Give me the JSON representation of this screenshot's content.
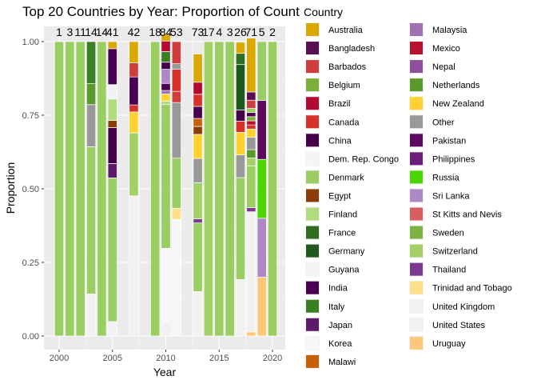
{
  "chart_data": {
    "type": "bar",
    "stacked": true,
    "title": "Top 20 Countries by Year: Proportion of Count",
    "xlabel": "Year",
    "ylabel": "Proportion",
    "xlim": [
      1998,
      2021
    ],
    "ylim": [
      0,
      1
    ],
    "xticks": [
      2000,
      2005,
      2010,
      2015,
      2020
    ],
    "yticks": [
      "0.00",
      "0.25",
      "0.50",
      "0.75",
      "1.00"
    ],
    "legend_title": "Country",
    "legend_position": "right",
    "legend": [
      {
        "name": "Australia",
        "color": "#DAA800"
      },
      {
        "name": "Bangladesh",
        "color": "#5A0F55"
      },
      {
        "name": "Barbados",
        "color": "#CF3D3D"
      },
      {
        "name": "Belgium",
        "color": "#7AAF3A"
      },
      {
        "name": "Brazil",
        "color": "#B20A30"
      },
      {
        "name": "Canada",
        "color": "#D6312B"
      },
      {
        "name": "China",
        "color": "#45004A"
      },
      {
        "name": "Dem. Rep. Congo",
        "color": "#F5F5F5"
      },
      {
        "name": "Denmark",
        "color": "#9ACD62"
      },
      {
        "name": "Egypt",
        "color": "#8C3C06"
      },
      {
        "name": "Finland",
        "color": "#B0DD7E"
      },
      {
        "name": "France",
        "color": "#2F6E20"
      },
      {
        "name": "Germany",
        "color": "#1E5A1E"
      },
      {
        "name": "Guyana",
        "color": "#F4F4F4"
      },
      {
        "name": "India",
        "color": "#4A0050"
      },
      {
        "name": "Italy",
        "color": "#3A7F22"
      },
      {
        "name": "Japan",
        "color": "#5E1A6A"
      },
      {
        "name": "Korea",
        "color": "#F7F7F7"
      },
      {
        "name": "Malawi",
        "color": "#C8600A"
      },
      {
        "name": "Malaysia",
        "color": "#A070B0"
      },
      {
        "name": "Mexico",
        "color": "#B5122E"
      },
      {
        "name": "Nepal",
        "color": "#8E509C"
      },
      {
        "name": "Netherlands",
        "color": "#5A9A2A"
      },
      {
        "name": "New Zealand",
        "color": "#FFD230"
      },
      {
        "name": "Other",
        "color": "#999999"
      },
      {
        "name": "Pakistan",
        "color": "#5C0A5E"
      },
      {
        "name": "Philippines",
        "color": "#6A1E78"
      },
      {
        "name": "Russia",
        "color": "#4CD600"
      },
      {
        "name": "Sri Lanka",
        "color": "#AE88C4"
      },
      {
        "name": "St Kitts and Nevis",
        "color": "#D85F5F"
      },
      {
        "name": "Sweden",
        "color": "#7CB342"
      },
      {
        "name": "Switzerland",
        "color": "#A2CF66"
      },
      {
        "name": "Thailand",
        "color": "#7A3A8E"
      },
      {
        "name": "Trinidad and Tobago",
        "color": "#FFE08A"
      },
      {
        "name": "United Kingdom",
        "color": "#F2F2F2"
      },
      {
        "name": "United States",
        "color": "#F1F1F1"
      },
      {
        "name": "Uruguay",
        "color": "#FFC878"
      }
    ],
    "counts": [
      {
        "x": 2000,
        "label": "1"
      },
      {
        "x": 2001,
        "label": "3"
      },
      {
        "x": 2002,
        "label": "11"
      },
      {
        "x": 2003,
        "label": "14"
      },
      {
        "x": 2004,
        "label": "14"
      },
      {
        "x": 2005,
        "label": "41"
      },
      {
        "x": 2007,
        "label": "42"
      },
      {
        "x": 2009,
        "label": "18"
      },
      {
        "x": 2010,
        "label": "84"
      },
      {
        "x": 2011,
        "label": "53"
      },
      {
        "x": 2013,
        "label": "73"
      },
      {
        "x": 2014,
        "label": "17"
      },
      {
        "x": 2015,
        "label": "4"
      },
      {
        "x": 2016,
        "label": "3"
      },
      {
        "x": 2017,
        "label": "26"
      },
      {
        "x": 2018,
        "label": "71"
      },
      {
        "x": 2019,
        "label": "5"
      },
      {
        "x": 2020,
        "label": "2"
      }
    ],
    "bars": [
      {
        "x": 2000,
        "segments": [
          [
            "Denmark",
            1.0
          ]
        ]
      },
      {
        "x": 2001,
        "segments": [
          [
            "Denmark",
            1.0
          ]
        ]
      },
      {
        "x": 2002,
        "segments": [
          [
            "Denmark",
            1.0
          ]
        ]
      },
      {
        "x": 2003,
        "segments": [
          [
            "United States",
            0.143
          ],
          [
            "Denmark",
            0.5
          ],
          [
            "Other",
            0.143
          ],
          [
            "Netherlands",
            0.071
          ],
          [
            "Italy",
            0.143
          ]
        ]
      },
      {
        "x": 2004,
        "segments": [
          [
            "Denmark",
            1.0
          ]
        ]
      },
      {
        "x": 2005,
        "segments": [
          [
            "United States",
            0.049
          ],
          [
            "Denmark",
            0.488
          ],
          [
            "Japan",
            0.049
          ],
          [
            "China",
            0.122
          ],
          [
            "Egypt",
            0.024
          ],
          [
            "Finland",
            0.073
          ],
          [
            "United Kingdom",
            0.049
          ],
          [
            "India",
            0.122
          ],
          [
            "Australia",
            0.024
          ]
        ]
      },
      {
        "x": 2007,
        "segments": [
          [
            "United States",
            0.476
          ],
          [
            "Switzerland",
            0.214
          ],
          [
            "New Zealand",
            0.071
          ],
          [
            "Canada",
            0.024
          ],
          [
            "India",
            0.095
          ],
          [
            "Barbados",
            0.048
          ],
          [
            "Australia",
            0.072
          ]
        ]
      },
      {
        "x": 2009,
        "segments": [
          [
            "Denmark",
            1.0
          ]
        ]
      },
      {
        "x": 2010,
        "segments": [
          [
            "United States",
            0.048
          ],
          [
            "Korea",
            0.25
          ],
          [
            "Denmark",
            0.488
          ],
          [
            "Finland",
            0.012
          ],
          [
            "New Zealand",
            0.024
          ],
          [
            "Malaysia",
            0.012
          ],
          [
            "India",
            0.024
          ],
          [
            "Sri Lanka",
            0.048
          ],
          [
            "China",
            0.024
          ],
          [
            "Italy",
            0.036
          ],
          [
            "Brazil",
            0.036
          ],
          [
            "Australia",
            0.024
          ]
        ]
      },
      {
        "x": 2011,
        "segments": [
          [
            "Korea",
            0.396
          ],
          [
            "Trinidad and Tobago",
            0.038
          ],
          [
            "Denmark",
            0.17
          ],
          [
            "Other",
            0.189
          ],
          [
            "Barbados",
            0.038
          ],
          [
            "Canada",
            0.075
          ],
          [
            "Other",
            0.019
          ],
          [
            "Barbados",
            0.075
          ]
        ]
      },
      {
        "x": 2013,
        "segments": [
          [
            "United States",
            0.151
          ],
          [
            "Denmark",
            0.233
          ],
          [
            "Thailand",
            0.014
          ],
          [
            "Switzerland",
            0.123
          ],
          [
            "Other",
            0.082
          ],
          [
            "New Zealand",
            0.082
          ],
          [
            "Egypt",
            0.027
          ],
          [
            "Malawi",
            0.027
          ],
          [
            "India",
            0.041
          ],
          [
            "Canada",
            0.041
          ],
          [
            "Brazil",
            0.041
          ],
          [
            "Australia",
            0.096
          ]
        ]
      },
      {
        "x": 2014,
        "segments": [
          [
            "Switzerland",
            1.0
          ]
        ]
      },
      {
        "x": 2015,
        "segments": [
          [
            "Denmark",
            1.0
          ]
        ]
      },
      {
        "x": 2016,
        "segments": [
          [
            "Denmark",
            1.0
          ]
        ]
      },
      {
        "x": 2017,
        "segments": [
          [
            "United States",
            0.192
          ],
          [
            "Denmark",
            0.346
          ],
          [
            "Other",
            0.077
          ],
          [
            "New Zealand",
            0.077
          ],
          [
            "Canada",
            0.038
          ],
          [
            "China",
            0.038
          ],
          [
            "Germany",
            0.154
          ],
          [
            "France",
            0.038
          ],
          [
            "Australia",
            0.038
          ]
        ]
      },
      {
        "x": 2018,
        "segments": [
          [
            "Uruguay",
            0.014
          ],
          [
            "United States",
            0.408
          ],
          [
            "Thailand",
            0.014
          ],
          [
            "Denmark",
            0.141
          ],
          [
            "Switzerland",
            0.028
          ],
          [
            "Netherlands",
            0.028
          ],
          [
            "Other",
            0.042
          ],
          [
            "New Zealand",
            0.028
          ],
          [
            "Canada",
            0.014
          ],
          [
            "Mexico",
            0.014
          ],
          [
            "Belgium",
            0.014
          ],
          [
            "India",
            0.014
          ],
          [
            "Denmark",
            0.014
          ],
          [
            "Barbados",
            0.028
          ],
          [
            "Bangladesh",
            0.028
          ],
          [
            "Australia",
            0.183
          ]
        ]
      },
      {
        "x": 2019,
        "segments": [
          [
            "Uruguay",
            0.2
          ],
          [
            "Sri Lanka",
            0.2
          ],
          [
            "Russia",
            0.2
          ],
          [
            "Pakistan",
            0.2
          ],
          [
            "Denmark",
            0.2
          ]
        ]
      },
      {
        "x": 2020,
        "segments": [
          [
            "Denmark",
            1.0
          ]
        ]
      }
    ]
  }
}
